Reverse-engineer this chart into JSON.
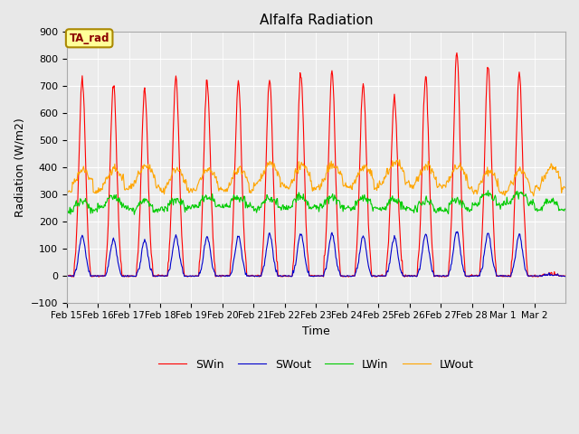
{
  "title": "Alfalfa Radiation",
  "xlabel": "Time",
  "ylabel": "Radiation (W/m2)",
  "ylim": [
    -100,
    900
  ],
  "annotation_text": "TA_rad",
  "fig_bg_color": "#e8e8e8",
  "plot_bg_color": "#ebebeb",
  "legend_entries": [
    "SWin",
    "SWout",
    "LWin",
    "LWout"
  ],
  "line_colors": [
    "#ff0000",
    "#0000cc",
    "#00cc00",
    "#ffa500"
  ],
  "xtick_labels": [
    "Feb 15",
    "Feb 16",
    "Feb 17",
    "Feb 18",
    "Feb 19",
    "Feb 20",
    "Feb 21",
    "Feb 22",
    "Feb 23",
    "Feb 24",
    "Feb 25",
    "Feb 26",
    "Feb 27",
    "Feb 28",
    "Mar 1",
    "Mar 2"
  ],
  "days": 16,
  "steps_per_day": 48,
  "SWin_peaks": [
    720,
    705,
    685,
    735,
    720,
    720,
    725,
    755,
    760,
    715,
    665,
    735,
    820,
    775,
    745,
    0
  ],
  "SWout_peaks": [
    145,
    135,
    130,
    150,
    140,
    145,
    150,
    155,
    155,
    145,
    140,
    150,
    165,
    155,
    150,
    0
  ],
  "LWin_base": 245,
  "LWout_base": 320,
  "LWin_day_add": 35,
  "LWout_day_add": 80,
  "grid_color": "#ffffff",
  "spine_color": "#aaaaaa"
}
